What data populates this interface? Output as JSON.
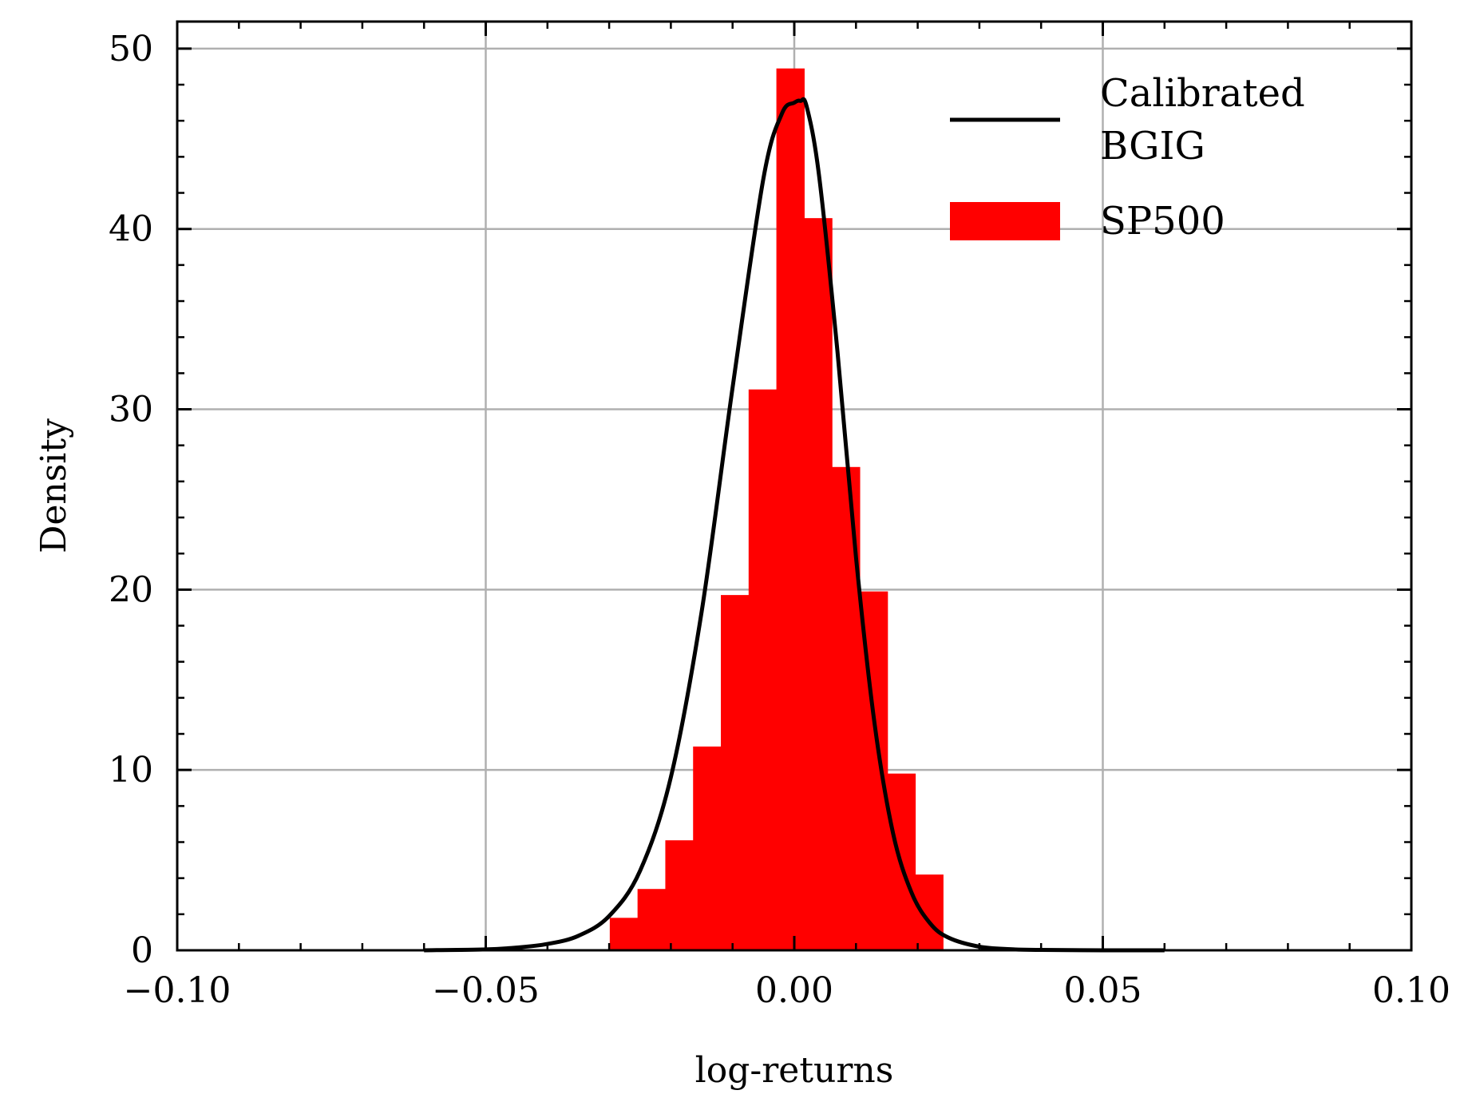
{
  "chart_data": {
    "type": "bar",
    "xlabel": "log-returns",
    "ylabel": "Density",
    "xlim": [
      -0.1,
      0.1
    ],
    "ylim": [
      0,
      51.5
    ],
    "grid": true,
    "legend_position": "top-right",
    "x_ticks": [
      -0.1,
      -0.05,
      0.0,
      0.05,
      0.1
    ],
    "x_tick_labels": [
      "−0.10",
      "−0.05",
      "0.00",
      "0.05",
      "0.10"
    ],
    "x_minor_step": 0.01,
    "y_ticks": [
      0,
      10,
      20,
      30,
      40,
      50
    ],
    "y_tick_labels": [
      "0",
      "10",
      "20",
      "30",
      "40",
      "50"
    ],
    "y_minor_step": 2,
    "histogram": {
      "name": "SP500",
      "color": "#ff0000",
      "bin_edges": [
        -0.0299,
        -0.0254,
        -0.0209,
        -0.0164,
        -0.0119,
        -0.0074,
        -0.0029,
        0.0016,
        0.0061,
        0.0106,
        0.0151,
        0.0196,
        0.0241
      ],
      "density": [
        1.8,
        3.4,
        6.1,
        11.3,
        19.7,
        31.1,
        48.9,
        40.6,
        26.8,
        19.9,
        9.8,
        4.2
      ]
    },
    "curve": {
      "name": "Calibrated\nBGIG",
      "color": "#000000",
      "x": [
        -0.06,
        -0.05,
        -0.045,
        -0.04,
        -0.035,
        -0.03,
        -0.025,
        -0.02,
        -0.015,
        -0.01,
        -0.005,
        -0.002,
        0.0,
        0.001,
        0.002,
        0.004,
        0.007,
        0.01,
        0.013,
        0.016,
        0.019,
        0.022,
        0.025,
        0.03,
        0.035,
        0.04,
        0.05,
        0.06
      ],
      "y": [
        0.0,
        0.05,
        0.15,
        0.35,
        0.8,
        1.9,
        4.4,
        9.6,
        18.8,
        31.2,
        42.8,
        46.4,
        47.0,
        47.1,
        46.8,
        43.0,
        33.2,
        21.8,
        12.6,
        6.5,
        3.2,
        1.5,
        0.7,
        0.2,
        0.06,
        0.02,
        0.0,
        0.0
      ]
    },
    "legend": [
      {
        "label": "Calibrated\nBGIG",
        "kind": "line",
        "color": "#000000"
      },
      {
        "label": "SP500",
        "kind": "patch",
        "color": "#ff0000"
      }
    ]
  }
}
